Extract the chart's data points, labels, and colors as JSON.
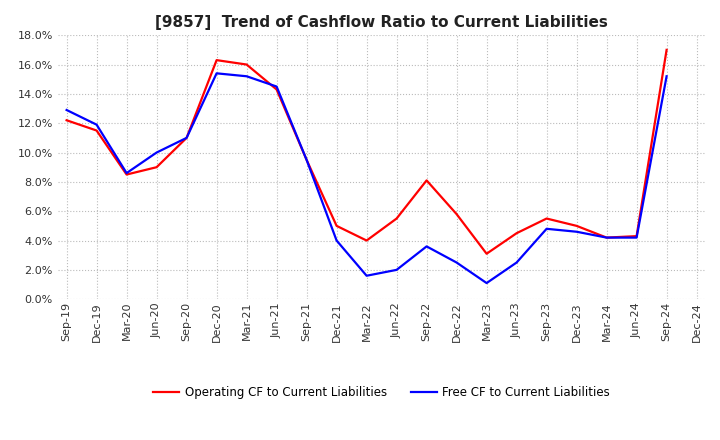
{
  "title": "[9857]  Trend of Cashflow Ratio to Current Liabilities",
  "x_labels": [
    "Sep-19",
    "Dec-19",
    "Mar-20",
    "Jun-20",
    "Sep-20",
    "Dec-20",
    "Mar-21",
    "Jun-21",
    "Sep-21",
    "Dec-21",
    "Mar-22",
    "Jun-22",
    "Sep-22",
    "Dec-22",
    "Mar-23",
    "Jun-23",
    "Sep-23",
    "Dec-23",
    "Mar-24",
    "Jun-24",
    "Sep-24",
    "Dec-24"
  ],
  "operating_cf": [
    12.2,
    11.5,
    8.5,
    9.0,
    11.0,
    16.3,
    16.0,
    14.3,
    9.5,
    5.0,
    4.0,
    5.5,
    8.1,
    5.8,
    3.1,
    4.5,
    5.5,
    5.0,
    4.2,
    4.3,
    17.0,
    null
  ],
  "free_cf": [
    12.9,
    11.9,
    8.6,
    10.0,
    11.0,
    15.4,
    15.2,
    14.5,
    9.5,
    4.0,
    1.6,
    2.0,
    3.6,
    2.5,
    1.1,
    2.5,
    4.8,
    4.6,
    4.2,
    4.2,
    15.2,
    null
  ],
  "ylim": [
    0,
    18.0
  ],
  "yticks": [
    0,
    2,
    4,
    6,
    8,
    10,
    12,
    14,
    16,
    18
  ],
  "operating_color": "#ff0000",
  "free_color": "#0000ff",
  "background_color": "#ffffff",
  "grid_color": "#bbbbbb",
  "title_fontsize": 11,
  "tick_fontsize": 8,
  "legend_labels": [
    "Operating CF to Current Liabilities",
    "Free CF to Current Liabilities"
  ]
}
